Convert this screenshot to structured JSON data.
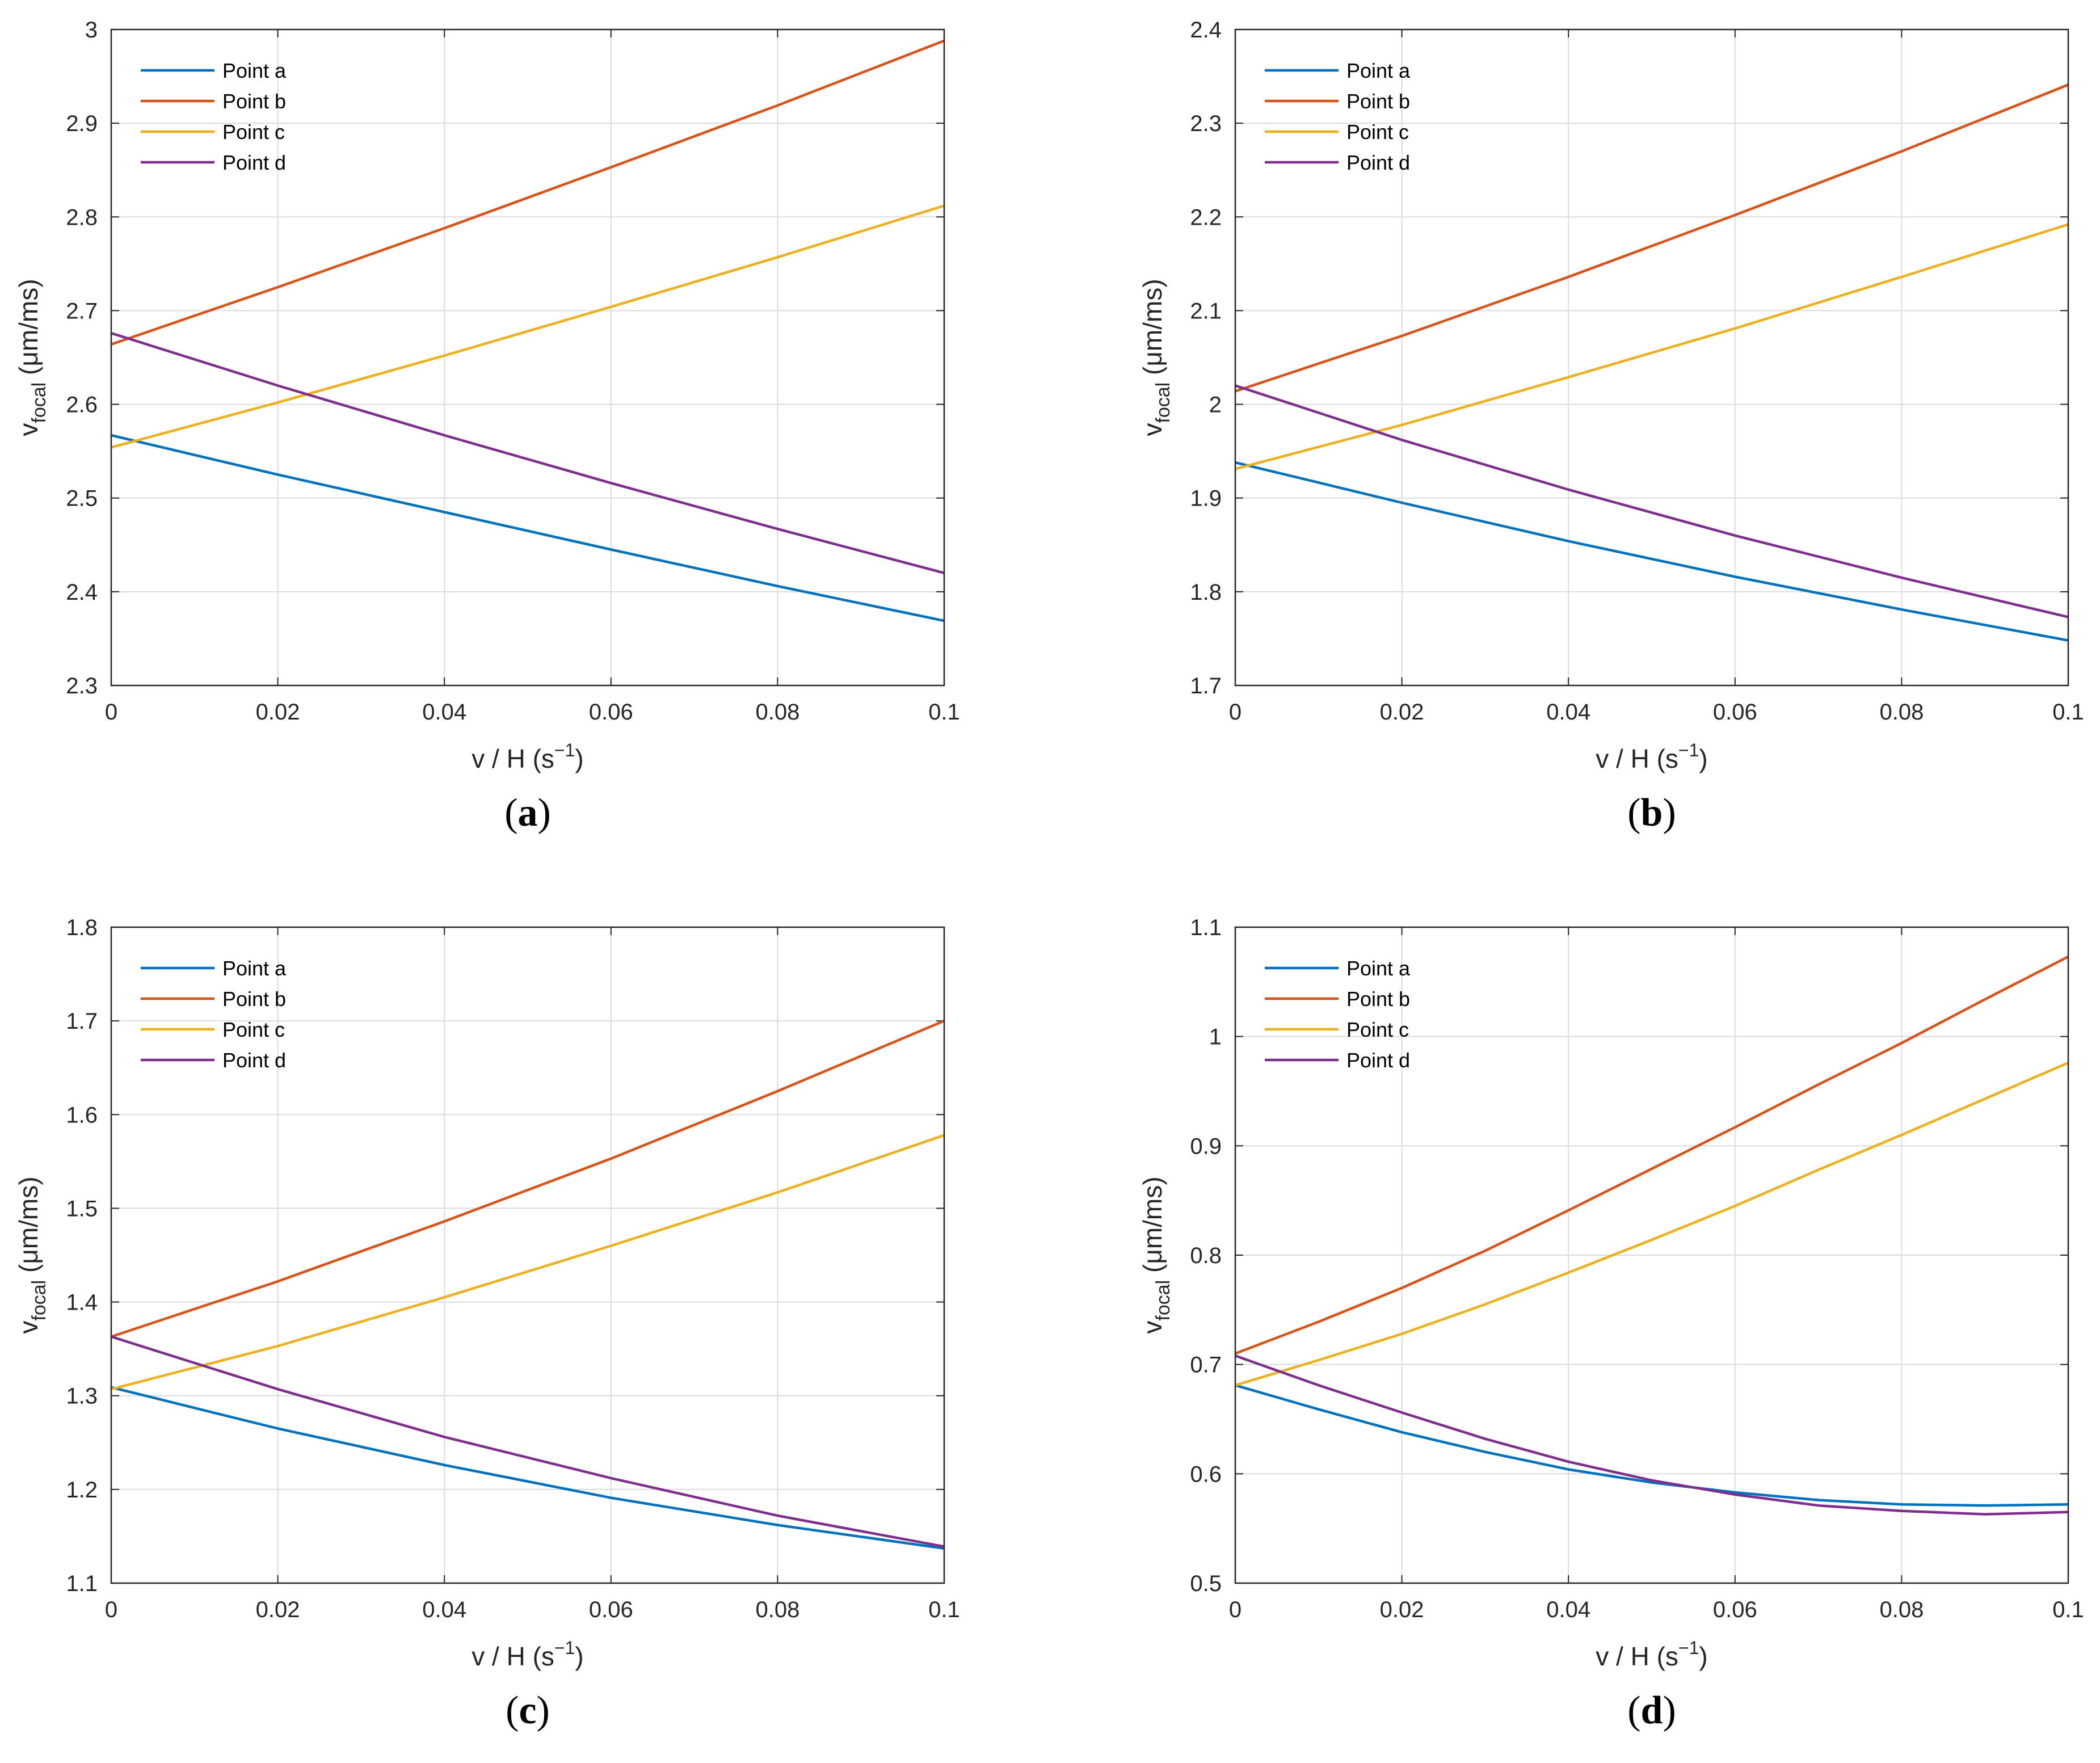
{
  "chart_data": [
    {
      "type": "line",
      "caption": "a",
      "xlabel": "v / H (s",
      "xlabel_sup": "−1",
      "xlabel_end": ")",
      "ylabel_main": "v",
      "ylabel_sub": "focal",
      "ylabel_unit": " (μm/ms)",
      "xlim": [
        0,
        0.1
      ],
      "ylim": [
        2.3,
        3.0
      ],
      "xticks": [
        0,
        0.02,
        0.04,
        0.06,
        0.08,
        0.1
      ],
      "xtick_labels": [
        "0",
        "0.02",
        "0.04",
        "0.06",
        "0.08",
        "0.1"
      ],
      "yticks": [
        2.3,
        2.4,
        2.5,
        2.6,
        2.7,
        2.8,
        2.9,
        3.0
      ],
      "ytick_labels": [
        "2.3",
        "2.4",
        "2.5",
        "2.6",
        "2.7",
        "2.8",
        "2.9",
        "3"
      ],
      "grid": true,
      "legend_position": "top-left",
      "x": [
        0,
        0.02,
        0.04,
        0.06,
        0.08,
        0.1
      ],
      "series": [
        {
          "name": "Point a",
          "color": "#0072BD",
          "values": [
            2.567,
            2.525,
            2.485,
            2.445,
            2.406,
            2.369
          ]
        },
        {
          "name": "Point b",
          "color": "#D95319",
          "values": [
            2.664,
            2.725,
            2.788,
            2.853,
            2.919,
            2.988
          ]
        },
        {
          "name": "Point c",
          "color": "#EDB120",
          "values": [
            2.554,
            2.602,
            2.652,
            2.704,
            2.757,
            2.812
          ]
        },
        {
          "name": "Point d",
          "color": "#7E2F8E",
          "values": [
            2.676,
            2.62,
            2.567,
            2.516,
            2.467,
            2.42
          ]
        }
      ]
    },
    {
      "type": "line",
      "caption": "b",
      "xlabel": "v / H (s",
      "xlabel_sup": "−1",
      "xlabel_end": ")",
      "ylabel_main": "v",
      "ylabel_sub": "focal",
      "ylabel_unit": " (μm/ms)",
      "xlim": [
        0,
        0.1
      ],
      "ylim": [
        1.7,
        2.4
      ],
      "xticks": [
        0,
        0.02,
        0.04,
        0.06,
        0.08,
        0.1
      ],
      "xtick_labels": [
        "0",
        "0.02",
        "0.04",
        "0.06",
        "0.08",
        "0.1"
      ],
      "yticks": [
        1.7,
        1.8,
        1.9,
        2.0,
        2.1,
        2.2,
        2.3,
        2.4
      ],
      "ytick_labels": [
        "1.7",
        "1.8",
        "1.9",
        "2",
        "2.1",
        "2.2",
        "2.3",
        "2.4"
      ],
      "grid": true,
      "legend_position": "top-left",
      "x": [
        0,
        0.02,
        0.04,
        0.06,
        0.08,
        0.1
      ],
      "series": [
        {
          "name": "Point a",
          "color": "#0072BD",
          "values": [
            1.938,
            1.895,
            1.854,
            1.816,
            1.781,
            1.748
          ]
        },
        {
          "name": "Point b",
          "color": "#D95319",
          "values": [
            2.014,
            2.073,
            2.136,
            2.202,
            2.27,
            2.341
          ]
        },
        {
          "name": "Point c",
          "color": "#EDB120",
          "values": [
            1.931,
            1.978,
            2.029,
            2.081,
            2.136,
            2.192
          ]
        },
        {
          "name": "Point d",
          "color": "#7E2F8E",
          "values": [
            2.02,
            1.962,
            1.909,
            1.86,
            1.815,
            1.773
          ]
        }
      ]
    },
    {
      "type": "line",
      "caption": "c",
      "xlabel": "v / H (s",
      "xlabel_sup": "−1",
      "xlabel_end": ")",
      "ylabel_main": "v",
      "ylabel_sub": "focal",
      "ylabel_unit": " (μm/ms)",
      "xlim": [
        0,
        0.1
      ],
      "ylim": [
        1.1,
        1.8
      ],
      "xticks": [
        0,
        0.02,
        0.04,
        0.06,
        0.08,
        0.1
      ],
      "xtick_labels": [
        "0",
        "0.02",
        "0.04",
        "0.06",
        "0.08",
        "0.1"
      ],
      "yticks": [
        1.1,
        1.2,
        1.3,
        1.4,
        1.5,
        1.6,
        1.7,
        1.8
      ],
      "ytick_labels": [
        "1.1",
        "1.2",
        "1.3",
        "1.4",
        "1.5",
        "1.6",
        "1.7",
        "1.8"
      ],
      "grid": true,
      "legend_position": "top-left",
      "x": [
        0,
        0.02,
        0.04,
        0.06,
        0.08,
        0.1
      ],
      "series": [
        {
          "name": "Point a",
          "color": "#0072BD",
          "values": [
            1.309,
            1.265,
            1.226,
            1.191,
            1.162,
            1.137
          ]
        },
        {
          "name": "Point b",
          "color": "#D95319",
          "values": [
            1.363,
            1.422,
            1.486,
            1.553,
            1.625,
            1.7
          ]
        },
        {
          "name": "Point c",
          "color": "#EDB120",
          "values": [
            1.307,
            1.353,
            1.405,
            1.46,
            1.517,
            1.578
          ]
        },
        {
          "name": "Point d",
          "color": "#7E2F8E",
          "values": [
            1.363,
            1.307,
            1.256,
            1.212,
            1.172,
            1.139
          ]
        }
      ]
    },
    {
      "type": "line",
      "caption": "d",
      "xlabel": "v / H (s",
      "xlabel_sup": "−1",
      "xlabel_end": ")",
      "ylabel_main": "v",
      "ylabel_sub": "focal",
      "ylabel_unit": " (μm/ms)",
      "xlim": [
        0,
        0.1
      ],
      "ylim": [
        0.5,
        1.1
      ],
      "xticks": [
        0,
        0.02,
        0.04,
        0.06,
        0.08,
        0.1
      ],
      "xtick_labels": [
        "0",
        "0.02",
        "0.04",
        "0.06",
        "0.08",
        "0.1"
      ],
      "yticks": [
        0.5,
        0.6,
        0.7,
        0.8,
        0.9,
        1.0,
        1.1
      ],
      "ytick_labels": [
        "0.5",
        "0.6",
        "0.7",
        "0.8",
        "0.9",
        "1",
        "1.1"
      ],
      "grid": true,
      "legend_position": "top-left",
      "x": [
        0,
        0.01,
        0.02,
        0.03,
        0.04,
        0.05,
        0.06,
        0.07,
        0.08,
        0.09,
        0.1
      ],
      "series": [
        {
          "name": "Point a",
          "color": "#0072BD",
          "values": [
            0.681,
            0.659,
            0.638,
            0.62,
            0.604,
            0.592,
            0.583,
            0.576,
            0.572,
            0.571,
            0.572
          ]
        },
        {
          "name": "Point b",
          "color": "#D95319",
          "values": [
            0.71,
            0.739,
            0.77,
            0.804,
            0.841,
            0.879,
            0.917,
            0.956,
            0.994,
            1.034,
            1.073
          ]
        },
        {
          "name": "Point c",
          "color": "#EDB120",
          "values": [
            0.681,
            0.704,
            0.728,
            0.755,
            0.784,
            0.814,
            0.845,
            0.878,
            0.91,
            0.943,
            0.976
          ]
        },
        {
          "name": "Point d",
          "color": "#7E2F8E",
          "values": [
            0.708,
            0.681,
            0.656,
            0.632,
            0.611,
            0.594,
            0.581,
            0.571,
            0.566,
            0.563,
            0.565
          ]
        }
      ]
    }
  ]
}
